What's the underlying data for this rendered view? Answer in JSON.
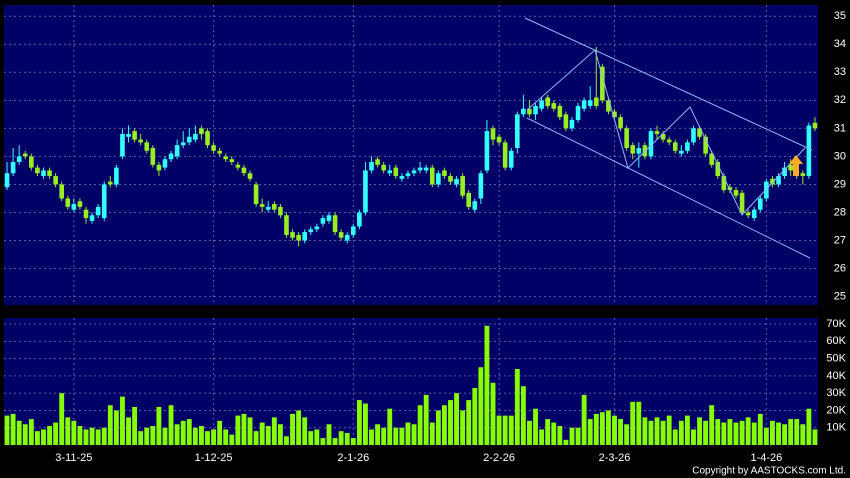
{
  "chart_data": [
    {
      "type": "candlestick",
      "open": [
        28.9,
        29.4,
        29.8,
        30.1,
        30.0,
        29.6,
        29.3,
        29.5,
        29.3,
        29.0,
        28.5,
        28.1,
        28.4,
        28.1,
        27.7,
        27.9,
        27.8,
        29.1,
        29.0,
        30.0,
        30.7,
        30.9,
        30.6,
        30.5,
        30.3,
        29.7,
        29.6,
        29.9,
        30.0,
        30.4,
        30.5,
        30.6,
        31.0,
        30.9,
        30.4,
        30.2,
        30.0,
        29.9,
        29.7,
        29.6,
        29.4,
        29.0,
        28.3,
        28.1,
        28.3,
        28.2,
        27.9,
        27.3,
        27.2,
        27.0,
        27.3,
        27.4,
        27.6,
        27.7,
        27.9,
        27.3,
        27.0,
        27.2,
        27.5,
        28.0,
        29.5,
        29.9,
        29.7,
        29.4,
        29.6,
        29.2,
        29.3,
        29.4,
        29.5,
        29.5,
        29.6,
        29.0,
        29.5,
        29.3,
        29.0,
        29.3,
        28.7,
        28.1,
        28.5,
        29.5,
        31.0,
        30.7,
        30.5,
        29.6,
        30.3,
        31.5,
        31.7,
        31.5,
        31.7,
        32.1,
        31.9,
        31.8,
        31.5,
        31.0,
        31.3,
        31.7,
        31.8,
        32.1,
        33.2,
        32.0,
        31.6,
        31.4,
        31.0,
        30.4,
        30.1,
        30.4,
        30.0,
        30.9,
        30.8,
        30.6,
        30.5,
        30.1,
        30.2,
        30.5,
        31.0,
        30.7,
        30.1,
        29.8,
        29.3,
        28.9,
        28.8,
        28.7,
        28.0,
        27.8,
        28.1,
        28.5,
        29.2,
        29.0,
        29.3,
        29.7,
        29.5,
        29.4,
        29.3,
        31.2
      ],
      "high": [
        29.8,
        30.3,
        30.4,
        30.2,
        30.1,
        29.7,
        29.6,
        29.6,
        29.4,
        29.1,
        28.6,
        28.5,
        28.5,
        28.2,
        28.0,
        28.3,
        29.1,
        29.3,
        29.7,
        31.0,
        31.1,
        31.0,
        30.8,
        30.6,
        30.4,
        29.8,
        30.0,
        30.2,
        30.6,
        30.9,
        31.0,
        31.1,
        31.1,
        31.0,
        30.5,
        30.3,
        30.1,
        30.0,
        29.8,
        29.7,
        29.5,
        29.1,
        28.5,
        28.4,
        28.4,
        28.3,
        28.0,
        27.4,
        27.3,
        27.4,
        27.5,
        27.6,
        27.9,
        28.0,
        28.0,
        27.4,
        27.3,
        27.6,
        28.1,
        29.8,
        30.0,
        30.0,
        29.8,
        29.7,
        29.7,
        29.4,
        29.5,
        29.6,
        29.8,
        29.7,
        29.7,
        29.5,
        29.6,
        29.4,
        29.3,
        29.4,
        28.8,
        28.5,
        29.5,
        31.3,
        31.1,
        30.8,
        30.6,
        30.3,
        31.6,
        32.2,
        32.0,
        31.9,
        32.1,
        32.2,
        32.0,
        31.9,
        31.6,
        31.4,
        31.9,
        32.1,
        32.5,
        33.9,
        33.3,
        32.1,
        31.7,
        31.5,
        31.1,
        30.5,
        30.5,
        30.5,
        31.0,
        31.1,
        30.9,
        30.7,
        30.6,
        30.4,
        30.6,
        31.1,
        31.1,
        30.8,
        30.2,
        29.9,
        29.4,
        29.0,
        28.9,
        28.8,
        28.1,
        28.2,
        28.6,
        29.2,
        29.3,
        29.4,
        29.8,
        29.9,
        29.7,
        29.5,
        31.2,
        31.4
      ],
      "low": [
        28.8,
        29.3,
        29.7,
        29.9,
        29.5,
        29.3,
        29.2,
        29.2,
        28.9,
        28.4,
        28.1,
        28.0,
        28.1,
        27.6,
        27.6,
        27.8,
        27.7,
        28.9,
        28.9,
        29.9,
        30.5,
        30.5,
        30.4,
        30.1,
        29.6,
        29.3,
        29.5,
        29.8,
        29.9,
        30.3,
        30.4,
        30.5,
        30.6,
        30.3,
        30.1,
        30.0,
        29.8,
        29.7,
        29.5,
        29.3,
        29.1,
        28.2,
        28.0,
        28.0,
        28.0,
        27.8,
        27.1,
        27.0,
        26.8,
        26.9,
        27.2,
        27.3,
        27.5,
        27.6,
        27.2,
        27.0,
        26.9,
        27.1,
        27.4,
        27.9,
        29.4,
        29.6,
        29.4,
        29.3,
        29.2,
        29.1,
        29.2,
        29.3,
        29.4,
        29.4,
        28.9,
        28.9,
        29.2,
        29.0,
        28.9,
        28.5,
        28.1,
        28.0,
        28.3,
        29.4,
        30.4,
        30.4,
        29.5,
        29.5,
        30.1,
        31.4,
        31.4,
        31.3,
        31.6,
        31.7,
        31.6,
        31.3,
        30.9,
        30.9,
        31.2,
        31.6,
        31.7,
        31.7,
        31.9,
        31.5,
        31.3,
        30.9,
        30.2,
        29.9,
        29.6,
        29.9,
        29.9,
        30.6,
        30.5,
        30.4,
        30.1,
        30.0,
        30.1,
        30.4,
        30.6,
        30.0,
        29.6,
        29.2,
        28.7,
        28.7,
        28.5,
        27.9,
        27.8,
        27.7,
        28.0,
        28.4,
        28.9,
        28.9,
        29.2,
        29.3,
        29.2,
        29.0,
        29.2,
        30.9
      ],
      "close": [
        29.4,
        29.8,
        30.0,
        30.0,
        29.6,
        29.4,
        29.5,
        29.3,
        29.0,
        28.5,
        28.2,
        28.3,
        28.2,
        27.8,
        27.9,
        28.2,
        29.0,
        29.0,
        29.6,
        30.8,
        30.8,
        30.6,
        30.5,
        30.2,
        29.7,
        29.5,
        29.9,
        30.1,
        30.4,
        30.5,
        30.7,
        30.8,
        30.8,
        30.4,
        30.2,
        30.1,
        29.9,
        29.8,
        29.6,
        29.4,
        29.2,
        28.3,
        28.2,
        28.2,
        28.1,
        27.9,
        27.2,
        27.1,
        27.0,
        27.3,
        27.4,
        27.5,
        27.8,
        27.9,
        27.3,
        27.1,
        27.2,
        27.5,
        28.0,
        29.5,
        29.8,
        29.7,
        29.5,
        29.5,
        29.3,
        29.3,
        29.4,
        29.5,
        29.6,
        29.6,
        29.0,
        29.4,
        29.3,
        29.1,
        29.2,
        28.6,
        28.2,
        28.4,
        29.4,
        30.9,
        30.6,
        30.5,
        29.6,
        30.2,
        31.5,
        31.7,
        31.5,
        31.8,
        32.0,
        31.8,
        31.7,
        31.4,
        31.0,
        31.3,
        31.8,
        32.0,
        32.0,
        31.8,
        32.0,
        31.6,
        31.4,
        31.0,
        30.3,
        30.1,
        30.3,
        30.0,
        30.9,
        30.8,
        30.6,
        30.5,
        30.2,
        30.2,
        30.5,
        31.0,
        30.7,
        30.1,
        29.7,
        29.3,
        28.8,
        28.8,
        28.6,
        28.0,
        27.9,
        28.1,
        28.5,
        29.1,
        29.0,
        29.3,
        29.6,
        29.5,
        29.4,
        29.3,
        31.1,
        31.0
      ],
      "up_color": "#33ffff",
      "down_color": "#99ee22",
      "ylim": [
        24.7,
        35.4
      ],
      "yticks": [
        25,
        26,
        27,
        28,
        29,
        30,
        31,
        32,
        33,
        34,
        35
      ],
      "grid": true
    },
    {
      "type": "bar",
      "values": [
        17000,
        18000,
        14000,
        12000,
        15000,
        8000,
        9000,
        11000,
        13000,
        30000,
        16000,
        14000,
        11000,
        9000,
        10000,
        9000,
        10000,
        23000,
        20000,
        28000,
        16000,
        22000,
        8000,
        10000,
        11000,
        22000,
        10000,
        23000,
        12000,
        14000,
        15000,
        10000,
        11000,
        8000,
        9000,
        14000,
        9000,
        6000,
        17000,
        18000,
        16000,
        8000,
        13000,
        11000,
        16000,
        12000,
        5000,
        18000,
        20000,
        16000,
        8000,
        9000,
        4000,
        12000,
        4000,
        8000,
        7000,
        4000,
        26000,
        24000,
        9000,
        12000,
        10000,
        21000,
        10000,
        10000,
        13000,
        12000,
        23000,
        29000,
        13000,
        20000,
        23000,
        26000,
        30000,
        20000,
        26000,
        33000,
        45000,
        69000,
        36000,
        17000,
        17000,
        17000,
        44000,
        34000,
        14000,
        21000,
        9000,
        15000,
        13000,
        11000,
        3000,
        10000,
        10000,
        29000,
        15000,
        18000,
        19000,
        20000,
        17000,
        15000,
        12000,
        25000,
        25000,
        16000,
        14000,
        16000,
        14000,
        17000,
        9000,
        14000,
        17000,
        9000,
        16000,
        14000,
        23000,
        15000,
        13000,
        15000,
        13000,
        14000,
        16000,
        13000,
        18000,
        10000,
        14000,
        13000,
        12000,
        15000,
        15000,
        12000,
        21000,
        9000
      ],
      "color": "#88ff00",
      "ylim": [
        0,
        73500
      ],
      "yticks": [
        {
          "value": 10000,
          "label": "10K"
        },
        {
          "value": 20000,
          "label": "20K"
        },
        {
          "value": 30000,
          "label": "30K"
        },
        {
          "value": 40000,
          "label": "40K"
        },
        {
          "value": 50000,
          "label": "50K"
        },
        {
          "value": 60000,
          "label": "60K"
        },
        {
          "value": 70000,
          "label": "70K"
        }
      ],
      "xticks": [
        {
          "value": 11,
          "label": "3-11-25"
        },
        {
          "value": 34,
          "label": "1-12-25"
        },
        {
          "value": 57,
          "label": "2-1-26"
        },
        {
          "value": 81,
          "label": "2-2-26"
        },
        {
          "value": 100,
          "label": "2-3-26"
        },
        {
          "value": 125,
          "label": "1-4-26"
        }
      ],
      "grid": true
    }
  ],
  "copyright": "Copyright by AASTOCKS.com Ltd."
}
